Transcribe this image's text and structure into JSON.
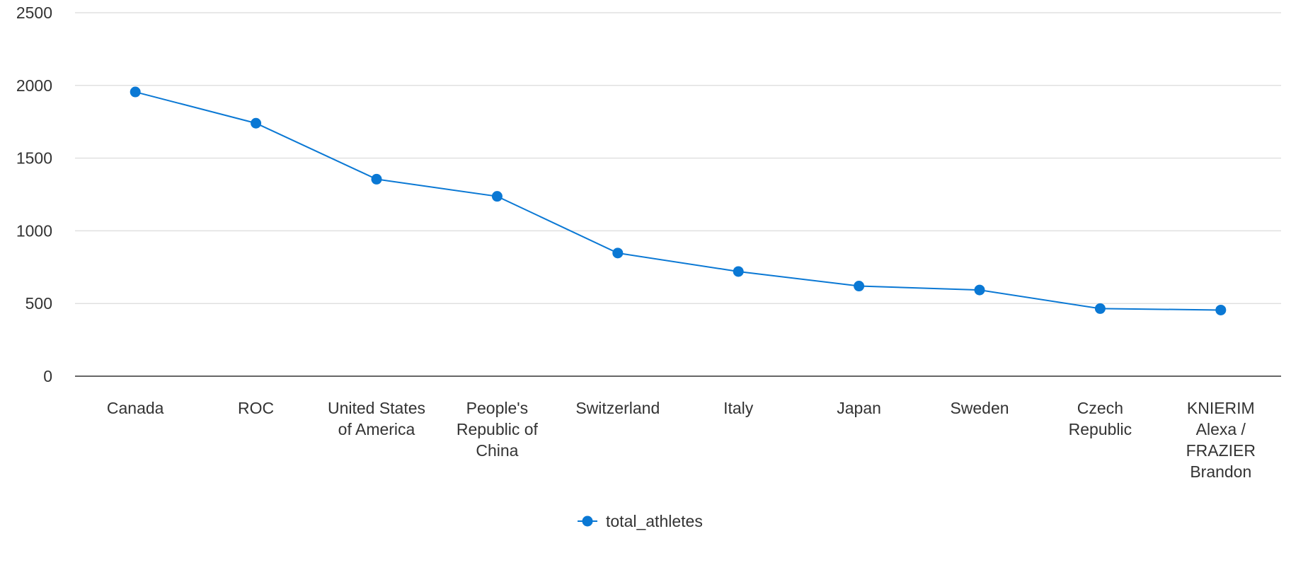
{
  "chart_data": {
    "type": "line",
    "title": "",
    "xlabel": "",
    "ylabel": "",
    "ylim": [
      0,
      2500
    ],
    "yticks": [
      0,
      500,
      1000,
      1500,
      2000,
      2500
    ],
    "grid": true,
    "legend_position": "bottom-center",
    "categories": [
      "Canada",
      "ROC",
      "United States of America",
      "People's Republic of China",
      "Switzerland",
      "Italy",
      "Japan",
      "Sweden",
      "Czech Republic",
      "KNIERIM Alexa / FRAZIER Brandon"
    ],
    "series": [
      {
        "name": "total_athletes",
        "color": "#0a78d4",
        "values": [
          1955,
          1740,
          1355,
          1237,
          847,
          720,
          620,
          593,
          465,
          455
        ]
      }
    ]
  }
}
